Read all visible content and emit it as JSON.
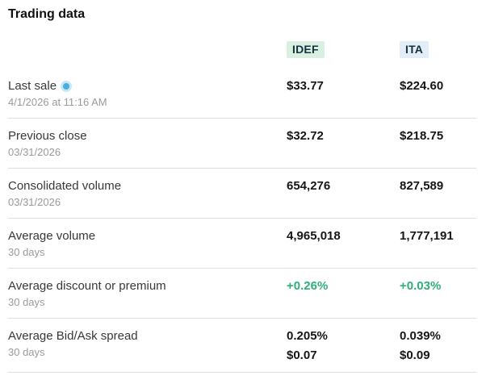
{
  "page": {
    "title": "Trading data"
  },
  "columns": [
    {
      "label": "IDEF",
      "bg": "#d8efe2",
      "text": "#16323f"
    },
    {
      "label": "ITA",
      "bg": "#e2edf8",
      "text": "#16323f"
    }
  ],
  "colors": {
    "positive": "#2eaf79",
    "value": "#161616",
    "label": "#383838",
    "sublabel": "#9a9a9a",
    "divider": "#dedede",
    "live_dot": "#4aaede"
  },
  "icons": {
    "live_indicator": "live-pulse-dot"
  },
  "rows": [
    {
      "label": "Last sale",
      "sublabel": "4/1/2026 at 11:16 AM",
      "live": true,
      "positive": false,
      "values": [
        [
          "$33.77"
        ],
        [
          "$224.60"
        ]
      ]
    },
    {
      "label": "Previous close",
      "sublabel": "03/31/2026",
      "live": false,
      "positive": false,
      "values": [
        [
          "$32.72"
        ],
        [
          "$218.75"
        ]
      ]
    },
    {
      "label": "Consolidated volume",
      "sublabel": "03/31/2026",
      "live": false,
      "positive": false,
      "values": [
        [
          "654,276"
        ],
        [
          "827,589"
        ]
      ]
    },
    {
      "label": "Average volume",
      "sublabel": "30 days",
      "live": false,
      "positive": false,
      "values": [
        [
          "4,965,018"
        ],
        [
          "1,777,191"
        ]
      ]
    },
    {
      "label": "Average discount or premium",
      "sublabel": "30 days",
      "live": false,
      "positive": true,
      "values": [
        [
          "+0.26%"
        ],
        [
          "+0.03%"
        ]
      ]
    },
    {
      "label": "Average Bid/Ask spread",
      "sublabel": "30 days",
      "live": false,
      "positive": false,
      "values": [
        [
          "0.205%",
          "$0.07"
        ],
        [
          "0.039%",
          "$0.09"
        ]
      ]
    }
  ]
}
